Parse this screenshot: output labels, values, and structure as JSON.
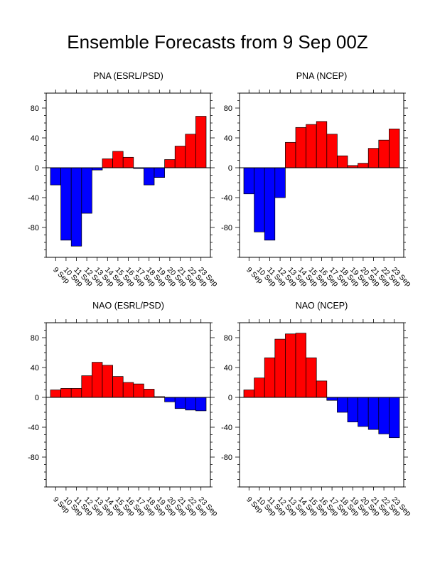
{
  "page_title": "Ensemble Forecasts from 9 Sep 00Z",
  "colors": {
    "positive": "#ff0000",
    "negative": "#0000ff",
    "outline": "#000000"
  },
  "chart_data": [
    {
      "type": "bar",
      "title": "PNA (ESRL/PSD)",
      "categories": [
        "9 Sep",
        "10 Sep",
        "11 Sep",
        "12 Sep",
        "13 Sep",
        "14 Sep",
        "15 Sep",
        "16 Sep",
        "17 Sep",
        "18 Sep",
        "19 Sep",
        "20 Sep",
        "21 Sep",
        "22 Sep",
        "23 Sep"
      ],
      "values": [
        -23,
        -97,
        -105,
        -61,
        -3,
        12,
        22,
        14,
        -1,
        -23,
        -13,
        11,
        29,
        45,
        69
      ],
      "ylim": [
        -120,
        100
      ],
      "yticks": [
        -80,
        -40,
        0,
        40,
        80
      ],
      "ytick_labels": [
        "-80",
        "-40",
        "0",
        "40",
        "80"
      ]
    },
    {
      "type": "bar",
      "title": "PNA (NCEP)",
      "categories": [
        "9 Sep",
        "10 Sep",
        "11 Sep",
        "12 Sep",
        "13 Sep",
        "14 Sep",
        "15 Sep",
        "16 Sep",
        "17 Sep",
        "18 Sep",
        "19 Sep",
        "20 Sep",
        "21 Sep",
        "22 Sep",
        "23 Sep"
      ],
      "values": [
        -35,
        -86,
        -97,
        -40,
        34,
        54,
        58,
        62,
        45,
        16,
        3,
        6,
        26,
        37,
        52
      ],
      "ylim": [
        -120,
        100
      ],
      "yticks": [
        -80,
        -40,
        0,
        40,
        80
      ],
      "ytick_labels": [
        "-80",
        "-40",
        "0",
        "40",
        "80"
      ]
    },
    {
      "type": "bar",
      "title": "NAO (ESRL/PSD)",
      "categories": [
        "9 Sep",
        "10 Sep",
        "11 Sep",
        "12 Sep",
        "13 Sep",
        "14 Sep",
        "15 Sep",
        "16 Sep",
        "17 Sep",
        "18 Sep",
        "19 Sep",
        "20 Sep",
        "21 Sep",
        "22 Sep",
        "23 Sep"
      ],
      "values": [
        10,
        12,
        12,
        29,
        47,
        43,
        28,
        20,
        18,
        11,
        1,
        -6,
        -15,
        -17,
        -18
      ],
      "ylim": [
        -120,
        100
      ],
      "yticks": [
        -80,
        -40,
        0,
        40,
        80
      ],
      "ytick_labels": [
        "-80",
        "-40",
        "0",
        "40",
        "80"
      ]
    },
    {
      "type": "bar",
      "title": "NAO (NCEP)",
      "categories": [
        "9 Sep",
        "10 Sep",
        "11 Sep",
        "12 Sep",
        "13 Sep",
        "14 Sep",
        "15 Sep",
        "16 Sep",
        "17 Sep",
        "18 Sep",
        "19 Sep",
        "20 Sep",
        "21 Sep",
        "22 Sep",
        "23 Sep"
      ],
      "values": [
        10,
        26,
        53,
        78,
        85,
        86,
        53,
        22,
        -4,
        -20,
        -33,
        -39,
        -43,
        -49,
        -54
      ],
      "ylim": [
        -120,
        100
      ],
      "yticks": [
        -80,
        -40,
        0,
        40,
        80
      ],
      "ytick_labels": [
        "-80",
        "-40",
        "0",
        "40",
        "80"
      ]
    }
  ]
}
